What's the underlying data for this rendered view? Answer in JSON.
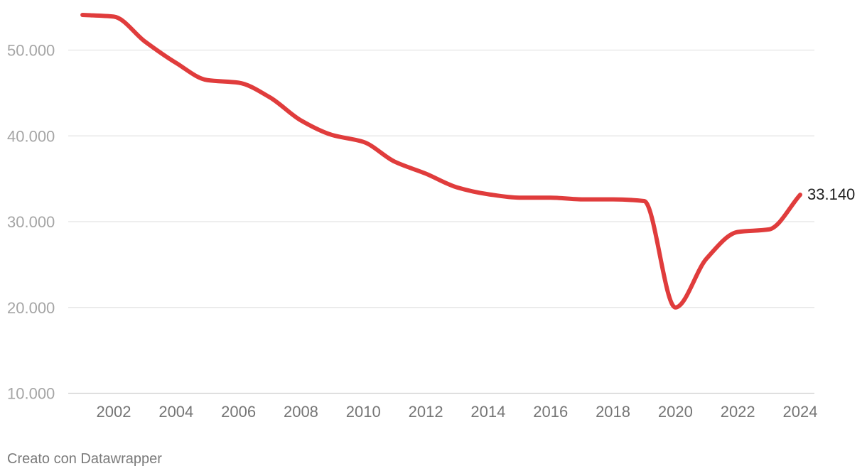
{
  "chart_data": {
    "type": "line",
    "title": "",
    "xlabel": "",
    "ylabel": "",
    "x": [
      2001,
      2002,
      2003,
      2004,
      2005,
      2006,
      2007,
      2008,
      2009,
      2010,
      2011,
      2012,
      2013,
      2014,
      2015,
      2016,
      2017,
      2018,
      2019,
      2020,
      2021,
      2022,
      2023,
      2024
    ],
    "series": [
      {
        "color": "#e03c3c",
        "values": [
          54100,
          53900,
          51000,
          48500,
          46500,
          46200,
          44500,
          41800,
          40100,
          39300,
          37000,
          35600,
          34000,
          33200,
          32800,
          32800,
          32600,
          32600,
          32400,
          20000,
          25700,
          28800,
          29100,
          33140
        ]
      }
    ],
    "ylim": [
      10000,
      55000
    ],
    "yticks": [
      10000,
      20000,
      30000,
      40000,
      50000
    ],
    "ytick_labels": [
      "10.000",
      "20.000",
      "30.000",
      "40.000",
      "50.000"
    ],
    "xticks": [
      2002,
      2004,
      2006,
      2008,
      2010,
      2012,
      2014,
      2016,
      2018,
      2020,
      2022,
      2024
    ],
    "xtick_labels": [
      "2002",
      "2004",
      "2006",
      "2008",
      "2010",
      "2012",
      "2014",
      "2016",
      "2018",
      "2020",
      "2022",
      "2024"
    ],
    "end_label": "33.140",
    "grid": true,
    "legend": "none"
  },
  "footer": "Creato con Datawrapper"
}
